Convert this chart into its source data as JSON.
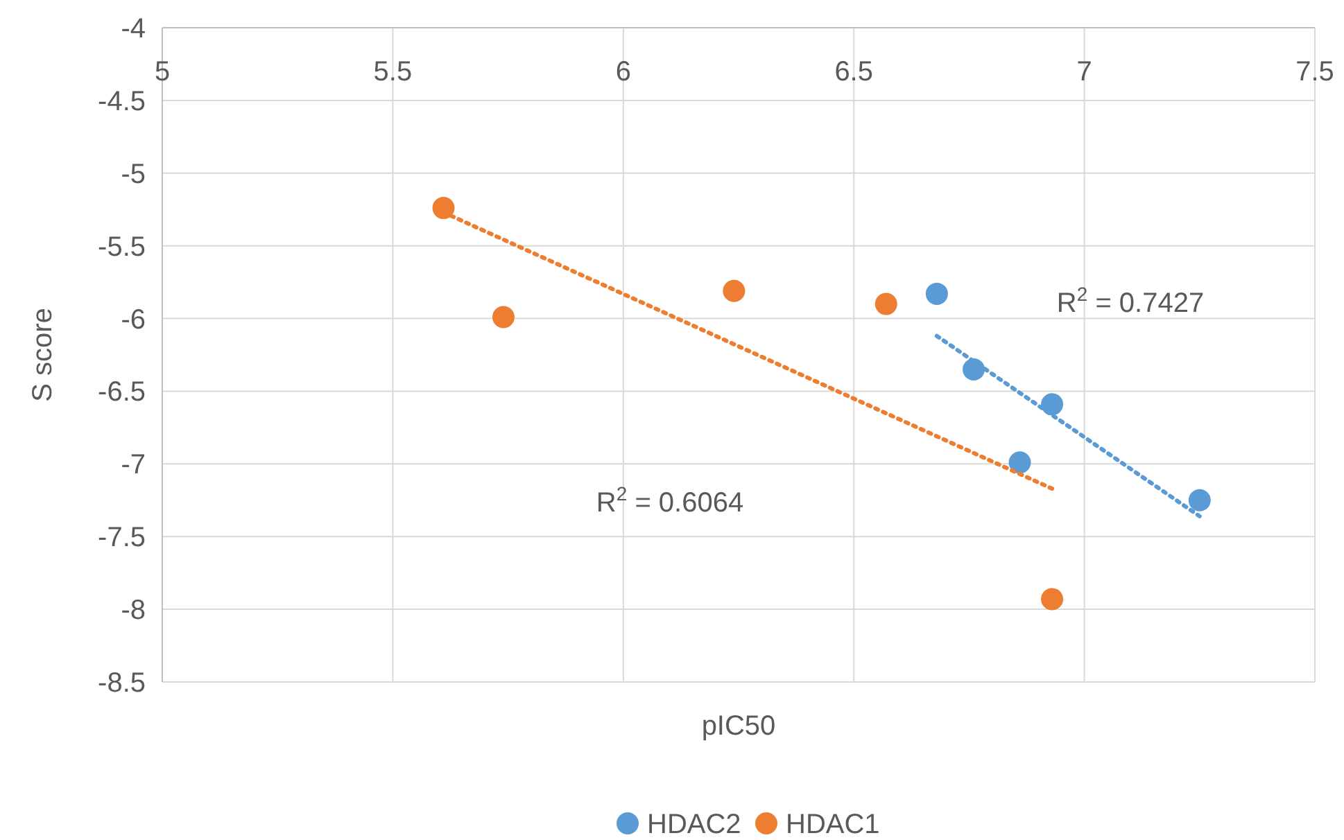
{
  "chart_data": {
    "type": "scatter",
    "xlabel": "pIC50",
    "ylabel": "S score",
    "xlim": [
      5,
      7.5
    ],
    "xticks": [
      5,
      5.5,
      6,
      6.5,
      7,
      7.5
    ],
    "ylim": [
      -8.5,
      -4
    ],
    "yticks": [
      -8.5,
      -8,
      -7.5,
      -7,
      -6.5,
      -6,
      -5.5,
      -5,
      -4.5,
      -4
    ],
    "grid": true,
    "legend": "bottom",
    "marker": "circle",
    "series": [
      {
        "name": "HDAC2",
        "color": "#5b9bd5",
        "x": [
          6.68,
          6.76,
          6.93,
          6.86,
          7.25
        ],
        "values": [
          -5.83,
          -6.35,
          -6.59,
          -6.99,
          -7.25
        ]
      },
      {
        "name": "HDAC1",
        "color": "#ed7d31",
        "x": [
          5.61,
          5.74,
          6.24,
          6.57,
          6.93
        ],
        "values": [
          -5.24,
          -5.99,
          -5.81,
          -5.9,
          -7.93
        ]
      },
      {
        "type": "line",
        "color": "#5b9bd5",
        "x": [
          6.68,
          7.25
        ],
        "values": [
          -6.12,
          -7.36
        ],
        "line_style": "dotted",
        "marker": "none"
      },
      {
        "type": "line",
        "color": "#ed7d31",
        "x": [
          5.61,
          6.93
        ],
        "values": [
          -5.27,
          -7.17
        ],
        "line_style": "dotted",
        "marker": "none"
      }
    ],
    "annotations": [
      "R$^{2}$ = 0.7427",
      "R$^{2}$ = 0.6064"
    ]
  }
}
